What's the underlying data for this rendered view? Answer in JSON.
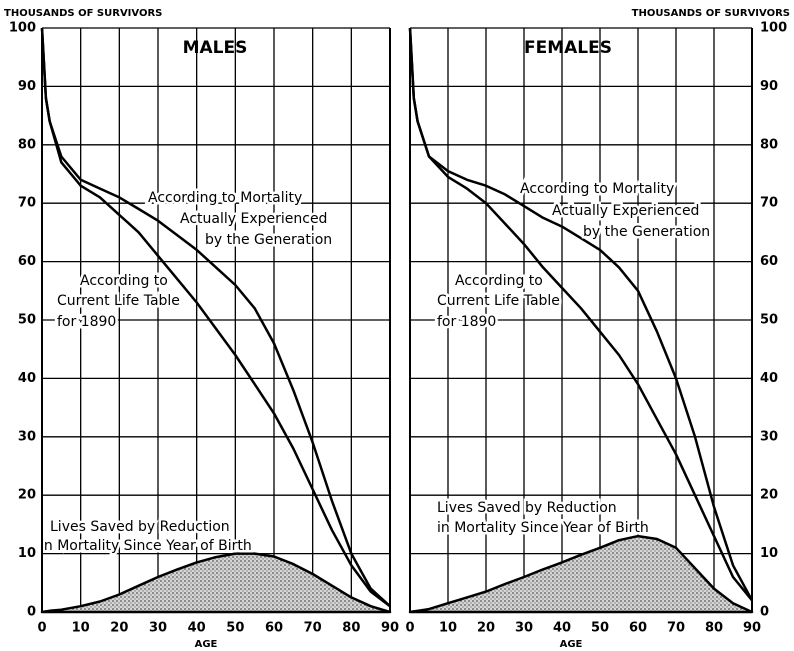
{
  "chart_data": [
    {
      "type": "line",
      "title": "MALES",
      "ylabel": "THOUSANDS OF SURVIVORS",
      "xlabel": "AGE",
      "x": [
        0,
        1,
        2,
        5,
        10,
        15,
        20,
        25,
        30,
        35,
        40,
        45,
        50,
        55,
        60,
        65,
        70,
        75,
        80,
        85,
        90
      ],
      "xlim": [
        0,
        90
      ],
      "xticks": [
        0,
        10,
        20,
        30,
        40,
        50,
        60,
        70,
        80,
        90
      ],
      "ylim": [
        0,
        100
      ],
      "yticks": [
        0,
        10,
        20,
        30,
        40,
        50,
        60,
        70,
        80,
        90,
        100
      ],
      "grid": true,
      "y_axis_side": "left",
      "series": [
        {
          "label": [
            "According to Mortality",
            "Actually Experienced",
            "by the Generation"
          ],
          "color": "#000000",
          "values": [
            100,
            88,
            84,
            78,
            74,
            72.5,
            71,
            69,
            67,
            64.5,
            62,
            59,
            56,
            52,
            46,
            38,
            29,
            19,
            10,
            4,
            1
          ]
        },
        {
          "label": [
            "According to",
            "Current Life Table",
            "for 1890"
          ],
          "color": "#000000",
          "values": [
            100,
            88,
            84,
            77,
            73,
            71,
            68,
            65,
            61,
            57,
            53,
            48.5,
            44,
            39,
            34,
            28,
            21,
            14,
            8,
            3.5,
            1
          ]
        },
        {
          "label": [
            "Lives Saved by Reduction",
            "in Mortality Since Year of Birth"
          ],
          "color": "#000000",
          "area": true,
          "values": [
            0,
            0.1,
            0.2,
            0.4,
            1,
            1.8,
            3,
            4.5,
            6,
            7.3,
            8.5,
            9.4,
            10,
            10,
            9.5,
            8.2,
            6.5,
            4.5,
            2.5,
            1,
            0
          ]
        }
      ]
    },
    {
      "type": "line",
      "title": "FEMALES",
      "ylabel": "THOUSANDS OF SURVIVORS",
      "xlabel": "AGE",
      "x": [
        0,
        1,
        2,
        5,
        10,
        15,
        20,
        25,
        30,
        35,
        40,
        45,
        50,
        55,
        60,
        65,
        70,
        75,
        80,
        85,
        90
      ],
      "xlim": [
        0,
        90
      ],
      "xticks": [
        0,
        10,
        20,
        30,
        40,
        50,
        60,
        70,
        80,
        90
      ],
      "ylim": [
        0,
        100
      ],
      "yticks": [
        0,
        10,
        20,
        30,
        40,
        50,
        60,
        70,
        80,
        90,
        100
      ],
      "grid": true,
      "y_axis_side": "right",
      "series": [
        {
          "label": [
            "According to Mortality",
            "Actually Experienced",
            "by the Generation"
          ],
          "color": "#000000",
          "values": [
            100,
            88,
            84,
            78,
            75.5,
            74,
            73,
            71.5,
            69.5,
            67.5,
            66,
            64,
            62,
            59,
            55,
            48,
            40,
            30,
            18,
            8,
            2
          ]
        },
        {
          "label": [
            "According to",
            "Current Life Table",
            "for 1890"
          ],
          "color": "#000000",
          "values": [
            100,
            88,
            84,
            78,
            74.5,
            72.5,
            70,
            66.5,
            63,
            59,
            55.5,
            52,
            48,
            44,
            39,
            33,
            27,
            20,
            13,
            6,
            2
          ]
        },
        {
          "label": [
            "Lives Saved by Reduction",
            "in Mortality Since Year of Birth"
          ],
          "color": "#000000",
          "area": true,
          "values": [
            0,
            0.1,
            0.2,
            0.5,
            1.5,
            2.5,
            3.5,
            4.8,
            6,
            7.3,
            8.5,
            9.8,
            11,
            12.3,
            13,
            12.5,
            11,
            7.5,
            4,
            1.5,
            0
          ]
        }
      ]
    }
  ]
}
